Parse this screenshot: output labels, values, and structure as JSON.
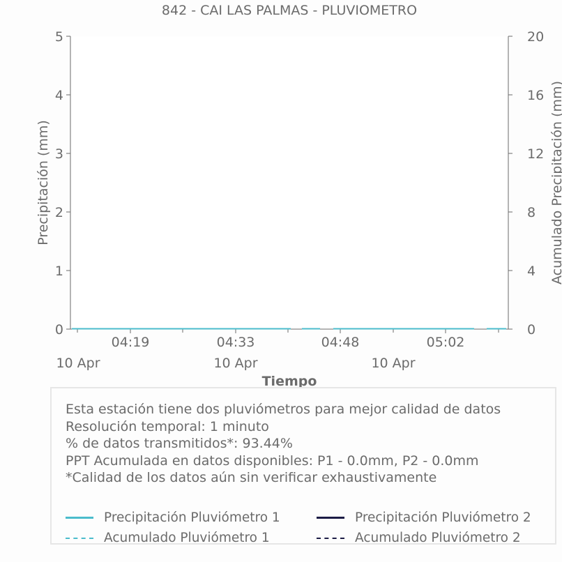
{
  "chart_data": {
    "type": "line",
    "title": "842 - CAI LAS PALMAS - PLUVIOMETRO",
    "xlabel": "Tiempo",
    "ylabel": "Precipitación (mm)",
    "y2label": "Acumulado Precipitación (mm)",
    "ylim": [
      0,
      5
    ],
    "y2lim": [
      0,
      20
    ],
    "yticks": [
      "0",
      "1",
      "2",
      "3",
      "4",
      "5"
    ],
    "y2ticks": [
      "0",
      "4",
      "8",
      "12",
      "16",
      "20"
    ],
    "xticks": [
      {
        "time": "04:19",
        "date": "10 Apr"
      },
      {
        "time": "04:33",
        "date": "10 Apr"
      },
      {
        "time": "04:48",
        "date": "10 Apr"
      },
      {
        "time": "05:02",
        "date": "10 Apr"
      }
    ],
    "xlim": [
      "04:12",
      "05:14"
    ],
    "grid": false,
    "series": [
      {
        "name": "Precipitación Pluviómetro 1",
        "color": "#4bbccc",
        "style": "solid",
        "axis": "left",
        "values": "0 at all times"
      },
      {
        "name": "Precipitación Pluviómetro 2",
        "color": "#1c1c45",
        "style": "solid",
        "axis": "left",
        "values": "0 at all times"
      },
      {
        "name": "Acumulado Pluviómetro 1",
        "color": "#4bbccc",
        "style": "dashed",
        "axis": "right",
        "values": "0 at all times"
      },
      {
        "name": "Acumulado Pluviómetro 2",
        "color": "#1c1c45",
        "style": "dashed",
        "axis": "right",
        "values": "0 at all times"
      }
    ],
    "legend_placement": "bottom"
  },
  "notes": [
    "Esta estación tiene dos pluviómetros para mejor calidad de datos",
    "Resolución temporal: 1 minuto",
    "% de datos transmitidos*: 93.44%",
    "PPT Acumulada en datos disponibles: P1 - 0.0mm, P2 - 0.0mm",
    "*Calidad de los datos aún sin verificar exhaustivamente"
  ]
}
